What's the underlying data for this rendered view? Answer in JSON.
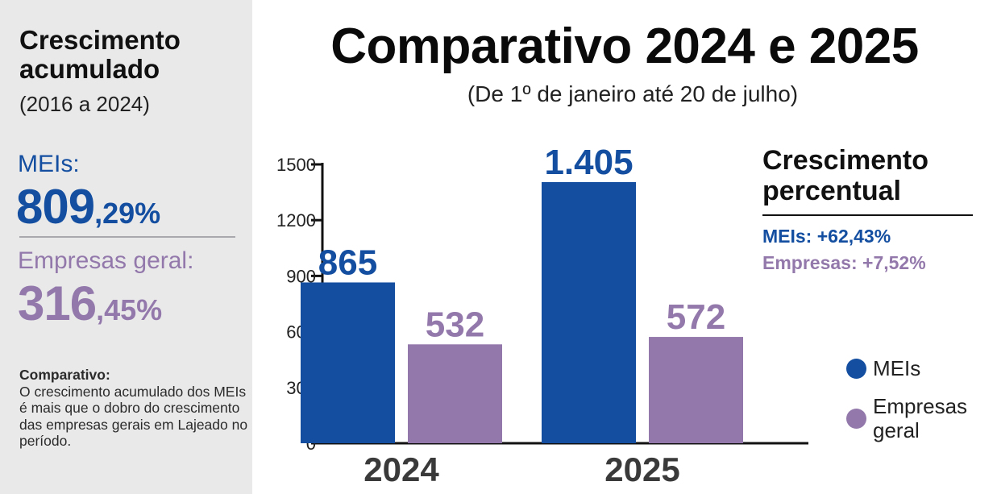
{
  "left_panel": {
    "title": "Crescimento acumulado",
    "period": "(2016 a 2024)",
    "mei_label": "MEIs:",
    "mei_value_int": "809",
    "mei_value_dec": ",29%",
    "empresas_label": "Empresas geral:",
    "empresas_value_int": "316",
    "empresas_value_dec": ",45%",
    "note_title": "Comparativo:",
    "note_text": "O crescimento acumulado dos MEIs é mais que o dobro do crescimento das empresas gerais em Lajeado no período."
  },
  "header": {
    "title": "Comparativo 2024 e 2025",
    "subtitle": "(De 1º de janeiro até 20 de julho)"
  },
  "growth": {
    "title": "Crescimento percentual",
    "meis": "MEIs: +62,43%",
    "empresas": "Empresas: +7,52%"
  },
  "legend": {
    "meis": "MEIs",
    "empresas": "Empresas geral"
  },
  "colors": {
    "meis": "#134ea0",
    "empresas": "#9379ab",
    "left_panel_bg": "#e9e9ea"
  },
  "chart_data": {
    "type": "bar",
    "categories": [
      "2024",
      "2025"
    ],
    "series": [
      {
        "name": "MEIs",
        "values": [
          865,
          1405
        ],
        "labels": [
          "865",
          "1.405"
        ],
        "color": "#134ea0"
      },
      {
        "name": "Empresas geral",
        "values": [
          532,
          572
        ],
        "labels": [
          "532",
          "572"
        ],
        "color": "#9379ab"
      }
    ],
    "yticks": [
      "0",
      "300",
      "600",
      "900",
      "1200",
      "1500"
    ],
    "ylim": [
      0,
      1500
    ],
    "grid": false,
    "legend_position": "right"
  }
}
